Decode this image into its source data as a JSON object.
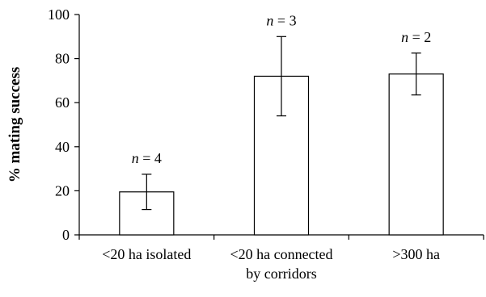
{
  "chart_data": {
    "type": "bar",
    "categories": [
      [
        "<20 ha isolated"
      ],
      [
        "<20 ha connected",
        "by corridors"
      ],
      [
        ">300 ha"
      ]
    ],
    "values": [
      19.5,
      72,
      73
    ],
    "error_low": [
      11.5,
      54,
      63.5
    ],
    "error_high": [
      27.5,
      90,
      82.5
    ],
    "sample_sizes": [
      {
        "n_label": "n",
        "eq": " = ",
        "value": "4"
      },
      {
        "n_label": "n",
        "eq": " = ",
        "value": "3"
      },
      {
        "n_label": "n",
        "eq": " = ",
        "value": "2"
      }
    ],
    "ylabel": "% mating success",
    "xlabel": "",
    "title": "",
    "ylim": [
      0,
      100
    ],
    "yticks": [
      "0",
      "20",
      "40",
      "60",
      "80",
      "100"
    ],
    "grid": false,
    "legend": "none",
    "colors": {
      "bar_fill": "#ffffff",
      "bar_stroke": "#000000",
      "axis": "#000000"
    }
  }
}
